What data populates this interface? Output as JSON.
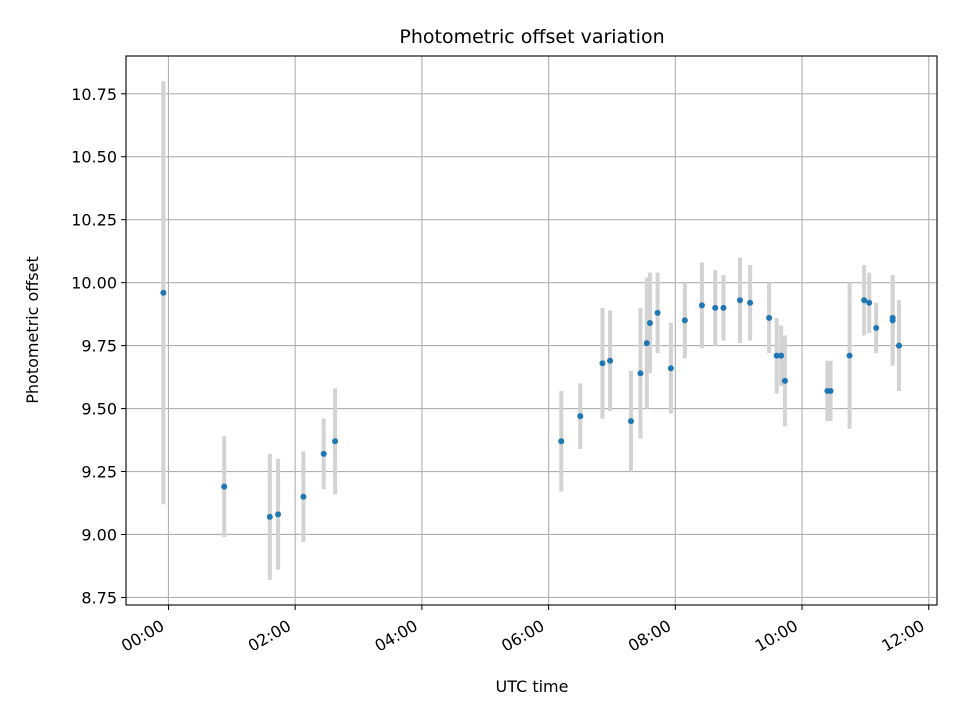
{
  "chart_data": {
    "type": "scatter",
    "title": "Photometric offset variation",
    "xlabel": "UTC time",
    "ylabel": "Photometric offset",
    "x_unit": "hours",
    "xlim": [
      -0.67,
      12.13
    ],
    "ylim": [
      8.72,
      10.9
    ],
    "grid": true,
    "x_ticks": [
      {
        "value": 0,
        "label": "00:00"
      },
      {
        "value": 2,
        "label": "02:00"
      },
      {
        "value": 4,
        "label": "04:00"
      },
      {
        "value": 6,
        "label": "06:00"
      },
      {
        "value": 8,
        "label": "08:00"
      },
      {
        "value": 10,
        "label": "10:00"
      },
      {
        "value": 12,
        "label": "12:00"
      }
    ],
    "y_ticks": [
      {
        "value": 8.75,
        "label": "8.75"
      },
      {
        "value": 9.0,
        "label": "9.00"
      },
      {
        "value": 9.25,
        "label": "9.25"
      },
      {
        "value": 9.5,
        "label": "9.50"
      },
      {
        "value": 9.75,
        "label": "9.75"
      },
      {
        "value": 10.0,
        "label": "10.00"
      },
      {
        "value": 10.25,
        "label": "10.25"
      },
      {
        "value": 10.5,
        "label": "10.50"
      },
      {
        "value": 10.75,
        "label": "10.75"
      }
    ],
    "colors": {
      "point": "#1f77b4",
      "errorbar": "#d3d3d3",
      "grid": "#b0b0b0"
    },
    "points": [
      {
        "x": -0.08,
        "y": 9.96,
        "err": 0.84
      },
      {
        "x": 0.88,
        "y": 9.19,
        "err": 0.2
      },
      {
        "x": 1.6,
        "y": 9.07,
        "err": 0.25
      },
      {
        "x": 1.73,
        "y": 9.08,
        "err": 0.22
      },
      {
        "x": 2.13,
        "y": 9.15,
        "err": 0.18
      },
      {
        "x": 2.45,
        "y": 9.32,
        "err": 0.14
      },
      {
        "x": 2.63,
        "y": 9.37,
        "err": 0.21
      },
      {
        "x": 6.2,
        "y": 9.37,
        "err": 0.2
      },
      {
        "x": 6.5,
        "y": 9.47,
        "err": 0.13
      },
      {
        "x": 6.85,
        "y": 9.68,
        "err": 0.22
      },
      {
        "x": 6.97,
        "y": 9.69,
        "err": 0.2
      },
      {
        "x": 7.3,
        "y": 9.45,
        "err": 0.2
      },
      {
        "x": 7.45,
        "y": 9.64,
        "err": 0.26
      },
      {
        "x": 7.55,
        "y": 9.76,
        "err": 0.26
      },
      {
        "x": 7.6,
        "y": 9.84,
        "err": 0.2
      },
      {
        "x": 7.72,
        "y": 9.88,
        "err": 0.16
      },
      {
        "x": 7.93,
        "y": 9.66,
        "err": 0.18
      },
      {
        "x": 8.15,
        "y": 9.85,
        "err": 0.15
      },
      {
        "x": 8.42,
        "y": 9.91,
        "err": 0.17
      },
      {
        "x": 8.63,
        "y": 9.9,
        "err": 0.15
      },
      {
        "x": 8.76,
        "y": 9.9,
        "err": 0.13
      },
      {
        "x": 9.02,
        "y": 9.93,
        "err": 0.17
      },
      {
        "x": 9.18,
        "y": 9.92,
        "err": 0.15
      },
      {
        "x": 9.48,
        "y": 9.86,
        "err": 0.14
      },
      {
        "x": 9.6,
        "y": 9.71,
        "err": 0.15
      },
      {
        "x": 9.67,
        "y": 9.71,
        "err": 0.12
      },
      {
        "x": 9.73,
        "y": 9.61,
        "err": 0.18
      },
      {
        "x": 10.4,
        "y": 9.57,
        "err": 0.12
      },
      {
        "x": 10.45,
        "y": 9.57,
        "err": 0.12
      },
      {
        "x": 10.75,
        "y": 9.71,
        "err": 0.29
      },
      {
        "x": 10.98,
        "y": 9.93,
        "err": 0.14
      },
      {
        "x": 11.06,
        "y": 9.92,
        "err": 0.12
      },
      {
        "x": 11.17,
        "y": 9.82,
        "err": 0.1
      },
      {
        "x": 11.43,
        "y": 9.85,
        "err": 0.18
      },
      {
        "x": 11.43,
        "y": 9.86,
        "err": 0.17
      },
      {
        "x": 11.53,
        "y": 9.75,
        "err": 0.18
      }
    ]
  }
}
